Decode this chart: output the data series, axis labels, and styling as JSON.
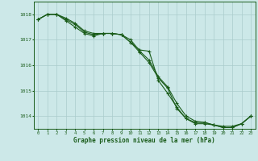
{
  "title": "Graphe pression niveau de la mer (hPa)",
  "bg_color": "#cce8e8",
  "grid_color": "#aacccc",
  "line_color": "#1a5c1a",
  "xlim": [
    -0.5,
    23.5
  ],
  "ylim": [
    1013.5,
    1018.5
  ],
  "yticks": [
    1014,
    1015,
    1016,
    1017,
    1018
  ],
  "xticks": [
    0,
    1,
    2,
    3,
    4,
    5,
    6,
    7,
    8,
    9,
    10,
    11,
    12,
    13,
    14,
    15,
    16,
    17,
    18,
    19,
    20,
    21,
    22,
    23
  ],
  "series": [
    [
      1017.8,
      1018.0,
      1018.0,
      1017.8,
      1017.6,
      1017.3,
      1017.2,
      1017.25,
      1017.25,
      1017.2,
      1016.9,
      1016.6,
      1016.55,
      1015.4,
      1014.9,
      1014.35,
      1013.9,
      1013.75,
      1013.75,
      1013.65,
      1013.6,
      1013.6,
      1013.7,
      1014.0
    ],
    [
      1017.8,
      1018.0,
      1018.0,
      1017.75,
      1017.5,
      1017.25,
      1017.15,
      1017.25,
      1017.25,
      1017.2,
      1016.9,
      1016.5,
      1016.1,
      1015.5,
      1015.1,
      1014.3,
      1013.9,
      1013.7,
      1013.7,
      1013.65,
      1013.55,
      1013.55,
      1013.7,
      1014.0
    ],
    [
      1017.8,
      1018.0,
      1018.0,
      1017.85,
      1017.65,
      1017.35,
      1017.25,
      1017.25,
      1017.25,
      1017.2,
      1017.0,
      1016.55,
      1016.2,
      1015.55,
      1015.15,
      1014.5,
      1014.0,
      1013.8,
      1013.75,
      1013.65,
      1013.55,
      1013.55,
      1013.7,
      1014.0
    ]
  ]
}
